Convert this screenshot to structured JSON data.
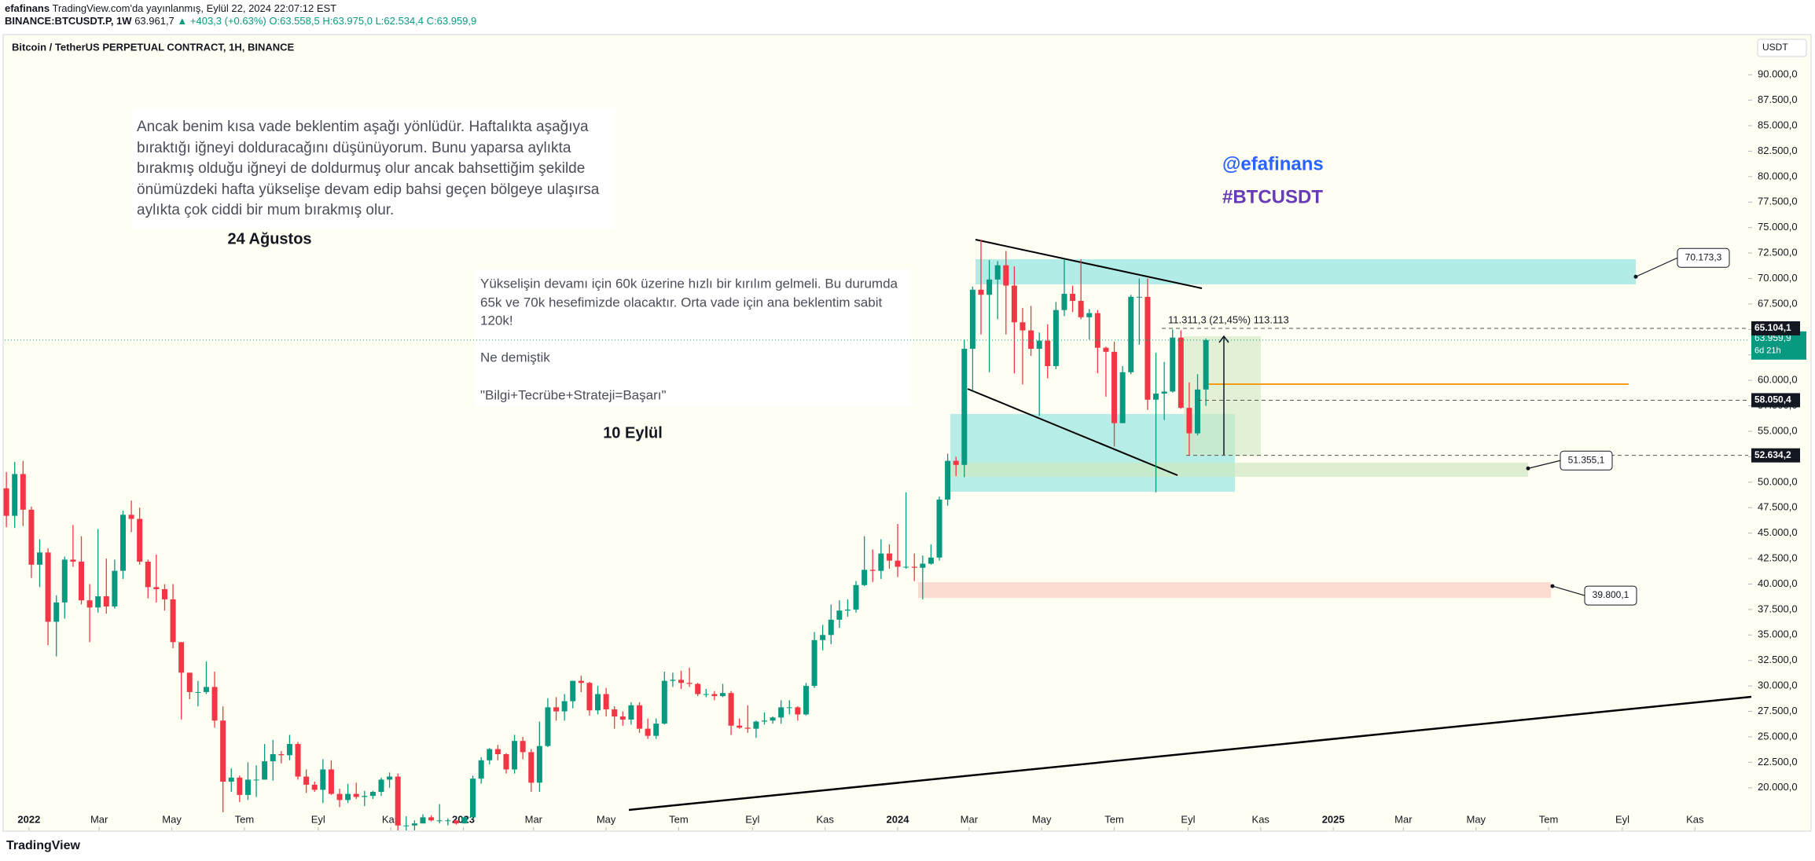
{
  "header": {
    "author": "efafinans",
    "published": "TradingView.com'da yayınlanmış, Eylül 22, 2024 22:07:12 EST",
    "symbol": "BINANCE:BTCUSDT.P, 1W",
    "last": "63.961,7",
    "change": "▲ +403,3 (+0.63%)",
    "open": "O:63.558,5",
    "high": "H:63.975,0",
    "low": "L:62.534,4",
    "close": "C:63.959,9"
  },
  "footer": {
    "logo": "TradingView"
  },
  "chart_data": {
    "type": "candlestick",
    "title": "Bitcoin / TetherUS PERPETUAL CONTRACT, 1H, BINANCE",
    "currency": "USDT",
    "up_color": "#089981",
    "down_color": "#f23645",
    "open": [
      49400,
      46700,
      50800,
      47300,
      41900,
      43100,
      36300,
      38200,
      42400,
      42200,
      38400,
      37700,
      38800,
      37800,
      41300,
      46800,
      46400,
      42200,
      39700,
      39500,
      38500,
      34300,
      31300,
      29400,
      29400,
      29900,
      26600,
      20600,
      21000,
      19300,
      20800,
      20800,
      22600,
      23300,
      23200,
      24300,
      21100,
      20300,
      19800,
      21800,
      19400,
      18800,
      19400,
      19100,
      19200,
      19600,
      20800,
      21100,
      16300,
      16300,
      16500,
      17100,
      16800,
      16800,
      16800,
      16500,
      17100,
      20900,
      22700,
      23800,
      23300,
      21800,
      24600,
      23500,
      20500,
      24100,
      27900,
      27500,
      28500,
      30500,
      30300,
      27600,
      29200,
      27700,
      27000,
      26700,
      28100,
      25800,
      25100,
      26300,
      30500,
      30600,
      30300,
      30200,
      29200,
      29200,
      29000,
      29300,
      26100,
      25900,
      25800,
      26500,
      26600,
      26900,
      27900,
      27900,
      27200,
      30000,
      34500,
      35000,
      36500,
      37400,
      37500,
      39900,
      41400,
      41300,
      43000,
      42300,
      41700,
      41700,
      41600,
      42000,
      42600,
      48300,
      52100,
      51700,
      63100,
      68900,
      68400,
      69900,
      71300,
      69300,
      65700,
      64900,
      63100,
      63900,
      61400,
      66900,
      68500,
      67800,
      66200,
      66600,
      63200,
      62800,
      55800,
      60800,
      68200,
      68200,
      58100,
      58700,
      58900,
      64200,
      57300,
      54800,
      59100
    ],
    "high": [
      51000,
      52000,
      52100,
      47600,
      44400,
      43500,
      38900,
      42700,
      45800,
      44700,
      40000,
      45400,
      42500,
      42400,
      47200,
      48200,
      47500,
      42400,
      42900,
      40000,
      40000,
      34300,
      31300,
      30500,
      32400,
      31400,
      28000,
      21900,
      21200,
      22500,
      22200,
      24300,
      24700,
      23600,
      25200,
      24500,
      21800,
      20600,
      22800,
      22700,
      19900,
      20400,
      20500,
      19700,
      19700,
      21000,
      21500,
      21400,
      17200,
      16800,
      17400,
      17300,
      18400,
      17000,
      16800,
      17200,
      21200,
      23000,
      23900,
      24200,
      23400,
      25200,
      25000,
      23800,
      26500,
      28800,
      28900,
      29200,
      30500,
      31000,
      30400,
      30000,
      29800,
      28000,
      27500,
      28400,
      28400,
      26800,
      26800,
      31400,
      31300,
      31500,
      31800,
      30300,
      29700,
      29500,
      30200,
      29500,
      26800,
      28100,
      26600,
      27400,
      27000,
      28600,
      28600,
      28000,
      30300,
      35300,
      36000,
      38000,
      38400,
      38500,
      40300,
      44700,
      43400,
      44400,
      43900,
      45900,
      49000,
      43000,
      42800,
      43900,
      48600,
      52800,
      52500,
      64000,
      69200,
      73800,
      71800,
      71700,
      72700,
      71200,
      67100,
      67300,
      64700,
      65500,
      67700,
      71900,
      69300,
      71900,
      67000,
      66900,
      63300,
      63800,
      61400,
      68400,
      70000,
      70000,
      62700,
      61800,
      65000,
      64900,
      59800,
      60600,
      64100
    ],
    "low": [
      45600,
      45500,
      45700,
      40600,
      39700,
      34000,
      32900,
      36600,
      41700,
      38000,
      34300,
      37200,
      37100,
      37600,
      40500,
      45100,
      41900,
      38600,
      38200,
      37400,
      33700,
      26700,
      28700,
      28000,
      29200,
      25900,
      17600,
      19600,
      18600,
      18800,
      19100,
      20800,
      20700,
      22400,
      22700,
      20800,
      19500,
      19600,
      18500,
      19300,
      18100,
      18500,
      18900,
      18200,
      18900,
      19200,
      20000,
      15600,
      15800,
      15500,
      16500,
      16700,
      16500,
      16300,
      16400,
      16500,
      17000,
      20400,
      22300,
      22700,
      21400,
      21400,
      22800,
      19600,
      19600,
      24000,
      26600,
      26600,
      27800,
      29400,
      27100,
      27200,
      27000,
      25800,
      26100,
      26200,
      25400,
      24800,
      24800,
      26200,
      29900,
      29700,
      29900,
      29000,
      28900,
      28600,
      28900,
      25200,
      25800,
      25400,
      24900,
      26200,
      26300,
      26300,
      27200,
      26600,
      27100,
      29800,
      33500,
      34100,
      35700,
      36800,
      37200,
      39800,
      40200,
      40500,
      41500,
      40700,
      41500,
      40300,
      38500,
      41900,
      42300,
      47700,
      50600,
      50500,
      59000,
      64500,
      60800,
      66000,
      64500,
      60700,
      59600,
      62400,
      56500,
      60200,
      61100,
      66300,
      66700,
      66000,
      64000,
      60700,
      58400,
      53500,
      55800,
      60600,
      63500,
      57100,
      49000,
      56100,
      58800,
      57200,
      52600,
      54600,
      57500
    ],
    "close": [
      46700,
      50800,
      47300,
      41900,
      43100,
      36300,
      38200,
      42400,
      42200,
      38400,
      37700,
      38800,
      37800,
      41300,
      46800,
      46400,
      42200,
      39700,
      39500,
      38500,
      34300,
      31300,
      29400,
      29400,
      29900,
      26600,
      20600,
      21000,
      19300,
      20800,
      20800,
      22600,
      23300,
      23200,
      24300,
      21100,
      20300,
      19800,
      21800,
      19400,
      18800,
      19400,
      19100,
      19200,
      19600,
      20800,
      21100,
      16300,
      16300,
      16500,
      17100,
      16800,
      16800,
      16800,
      16500,
      17100,
      20900,
      22700,
      23800,
      23300,
      21800,
      24600,
      23500,
      20500,
      24100,
      27900,
      27500,
      28500,
      30500,
      30300,
      27600,
      29200,
      27700,
      27000,
      26700,
      28100,
      25800,
      25100,
      26300,
      30500,
      30600,
      30300,
      30200,
      29200,
      29200,
      29000,
      29300,
      26100,
      25900,
      25800,
      26500,
      26600,
      26900,
      27900,
      27900,
      27200,
      30000,
      34500,
      35000,
      36500,
      37400,
      37500,
      39900,
      41400,
      41300,
      43000,
      42300,
      41700,
      41700,
      41600,
      42000,
      42600,
      48300,
      52100,
      51700,
      63100,
      68900,
      68400,
      69900,
      71300,
      69300,
      65700,
      64900,
      63100,
      63900,
      61400,
      66900,
      68500,
      67800,
      66200,
      66600,
      63200,
      62800,
      55800,
      60800,
      68200,
      68200,
      58100,
      58700,
      58900,
      64200,
      57300,
      54800,
      59100,
      63960
    ],
    "xlim": [
      -0.2,
      209.1
    ],
    "xticks": [
      {
        "value": 2.71,
        "label": "2022"
      },
      {
        "value": 11.14,
        "label": "Mar"
      },
      {
        "value": 19.86,
        "label": "May"
      },
      {
        "value": 28.57,
        "label": "Tem"
      },
      {
        "value": 37.43,
        "label": "Eyl"
      },
      {
        "value": 46.14,
        "label": "Kas"
      },
      {
        "value": 54.86,
        "label": "2023"
      },
      {
        "value": 63.29,
        "label": "Mar"
      },
      {
        "value": 72.0,
        "label": "May"
      },
      {
        "value": 80.71,
        "label": "Tem"
      },
      {
        "value": 89.57,
        "label": "Eyl"
      },
      {
        "value": 98.29,
        "label": "Kas"
      },
      {
        "value": 107.0,
        "label": "2024"
      },
      {
        "value": 115.57,
        "label": "Mar"
      },
      {
        "value": 124.29,
        "label": "May"
      },
      {
        "value": 133.0,
        "label": "Tem"
      },
      {
        "value": 141.86,
        "label": "Eyl"
      },
      {
        "value": 150.57,
        "label": "Kas"
      },
      {
        "value": 159.29,
        "label": "2025"
      },
      {
        "value": 167.71,
        "label": "Mar"
      },
      {
        "value": 176.43,
        "label": "May"
      },
      {
        "value": 185.14,
        "label": "Tem"
      },
      {
        "value": 194.0,
        "label": "Eyl"
      },
      {
        "value": 202.71,
        "label": "Kas"
      }
    ],
    "ylim": [
      15820,
      93870
    ],
    "yticks": [
      {
        "value": 20000,
        "label": "20.000,0"
      },
      {
        "value": 22500,
        "label": "22.500,0"
      },
      {
        "value": 25000,
        "label": "25.000,0"
      },
      {
        "value": 27500,
        "label": "27.500,0"
      },
      {
        "value": 30000,
        "label": "30.000,0"
      },
      {
        "value": 32500,
        "label": "32.500,0"
      },
      {
        "value": 35000,
        "label": "35.000,0"
      },
      {
        "value": 37500,
        "label": "37.500,0"
      },
      {
        "value": 40000,
        "label": "40.000,0"
      },
      {
        "value": 42500,
        "label": "42.500,0"
      },
      {
        "value": 45000,
        "label": "45.000,0"
      },
      {
        "value": 47500,
        "label": "47.500,0"
      },
      {
        "value": 50000,
        "label": "50.000,0"
      },
      {
        "value": 52500,
        "label": "52.500,0"
      },
      {
        "value": 55000,
        "label": "55.000,0"
      },
      {
        "value": 57500,
        "label": "57.500,0"
      },
      {
        "value": 60000,
        "label": "60.000,0"
      },
      {
        "value": 62500,
        "label": "62.500,0"
      },
      {
        "value": 65000,
        "label": "65.000,0"
      },
      {
        "value": 67500,
        "label": "67.500,0"
      },
      {
        "value": 70000,
        "label": "70.000,0"
      },
      {
        "value": 72500,
        "label": "72.500,0"
      },
      {
        "value": 75000,
        "label": "75.000,0"
      },
      {
        "value": 77500,
        "label": "77.500,0"
      },
      {
        "value": 80000,
        "label": "80.000,0"
      },
      {
        "value": 82500,
        "label": "82.500,0"
      },
      {
        "value": 85000,
        "label": "85.000,0"
      },
      {
        "value": 87500,
        "label": "87.500,0"
      },
      {
        "value": 90000,
        "label": "90.000,0"
      }
    ],
    "last_price": {
      "value": 63959.9,
      "label": "63.959,9",
      "countdown": "6d 21h"
    },
    "levels": [
      {
        "value": 65104.1,
        "label": "65.104,1"
      },
      {
        "value": 58050.4,
        "label": "58.050,4"
      },
      {
        "value": 52634.2,
        "label": "52.634,2"
      }
    ],
    "callouts": [
      {
        "value": 70173.3,
        "label": "70.173,3"
      },
      {
        "value": 51355.1,
        "label": "51.355,1"
      },
      {
        "value": 39800.1,
        "label": "39.800,1"
      }
    ],
    "measure": "11.311,3 (21,45%) 113.113",
    "notes": [
      {
        "lines": [
          "Ancak benim kısa vade beklentim aşağı yönlüdür. Haftalıkta aşağıya",
          "bıraktığı iğneyi dolduracağını düşünüyorum. Bunu yaparsa aylıkta",
          "bırakmış olduğu iğneyi de doldurmuş olur ancak bahsettiğim şekilde",
          "önümüzdeki hafta yükselişe devam edip bahsi geçen bölgeye ulaşırsa",
          "aylıkta çok ciddi bir mum bırakmış olur."
        ],
        "date": "24 Ağustos"
      },
      {
        "lines": [
          "Yükselişin devamı için 60k üzerine hızlı bir kırılım gelmeli. Bu durumda",
          "65k ve 70k hesefimizde olacaktır. Orta vade için ana beklentim sabit",
          "120k!",
          "Ne demiştik",
          "\"Bilgi+Tecrübe+Strateji=Başarı\""
        ],
        "date": "10 Eylül"
      }
    ],
    "tags": [
      "@efafinans",
      "#BTCUSDT"
    ]
  }
}
